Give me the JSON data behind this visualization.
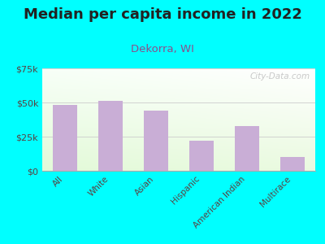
{
  "title": "Median per capita income in 2022",
  "subtitle": "Dekorra, WI",
  "categories": [
    "All",
    "White",
    "Asian",
    "Hispanic",
    "American Indian",
    "Multirace"
  ],
  "values": [
    48000,
    51000,
    44000,
    22000,
    33000,
    10000
  ],
  "bar_color": "#c9aed6",
  "background_color": "#00FFFF",
  "ylim": [
    0,
    75000
  ],
  "yticks": [
    0,
    25000,
    50000,
    75000
  ],
  "ytick_labels": [
    "$0",
    "$25k",
    "$50k",
    "$75k"
  ],
  "title_fontsize": 13,
  "subtitle_fontsize": 9.5,
  "title_color": "#222222",
  "subtitle_color": "#8B4E8B",
  "tick_color": "#5a4040",
  "watermark": "City-Data.com",
  "grad_colors": [
    "#e8f5d8",
    "#f5fff8",
    "#ffffff"
  ],
  "grid_color": "#cccccc"
}
